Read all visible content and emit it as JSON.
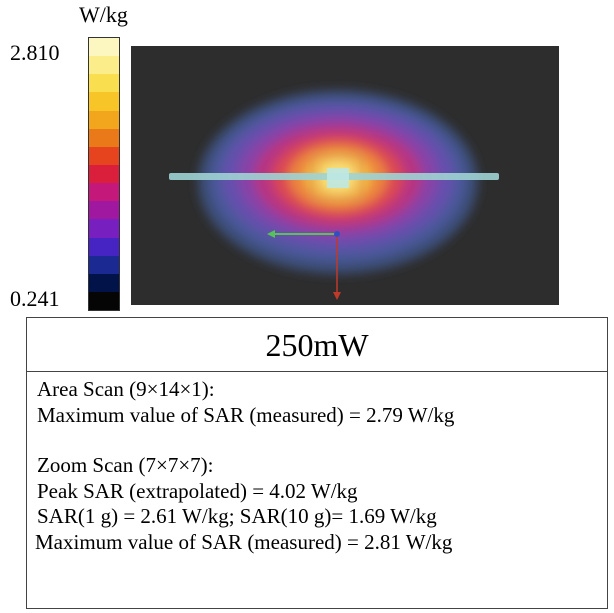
{
  "colorbar": {
    "unit": "W/kg",
    "max_label": "2.810",
    "min_label": "0.241",
    "colors": [
      "#fcf6c0",
      "#fbee8a",
      "#f9df50",
      "#f7c527",
      "#f1a61e",
      "#ea7a19",
      "#e5441e",
      "#d91f3c",
      "#c4197a",
      "#a0189f",
      "#781fc0",
      "#4624c4",
      "#1b2a92",
      "#02134a",
      "#050505"
    ]
  },
  "scan": {
    "background": "#2d2d2d",
    "probe_color": "#9fd3d3"
  },
  "info": {
    "title": "250mW",
    "area_scan": {
      "heading": "Area Scan (9×14×1):",
      "line": "Maximum value of SAR (measured) = 2.79 W/kg"
    },
    "zoom_scan": {
      "heading": "Zoom Scan (7×7×7):",
      "peak": "Peak SAR (extrapolated) = 4.02 W/kg",
      "sar": "SAR(1 g) = 2.61 W/kg; SAR(10 g)= 1.69 W/kg",
      "max": "Maximum value of SAR (measured) = 2.81 W/kg"
    }
  }
}
